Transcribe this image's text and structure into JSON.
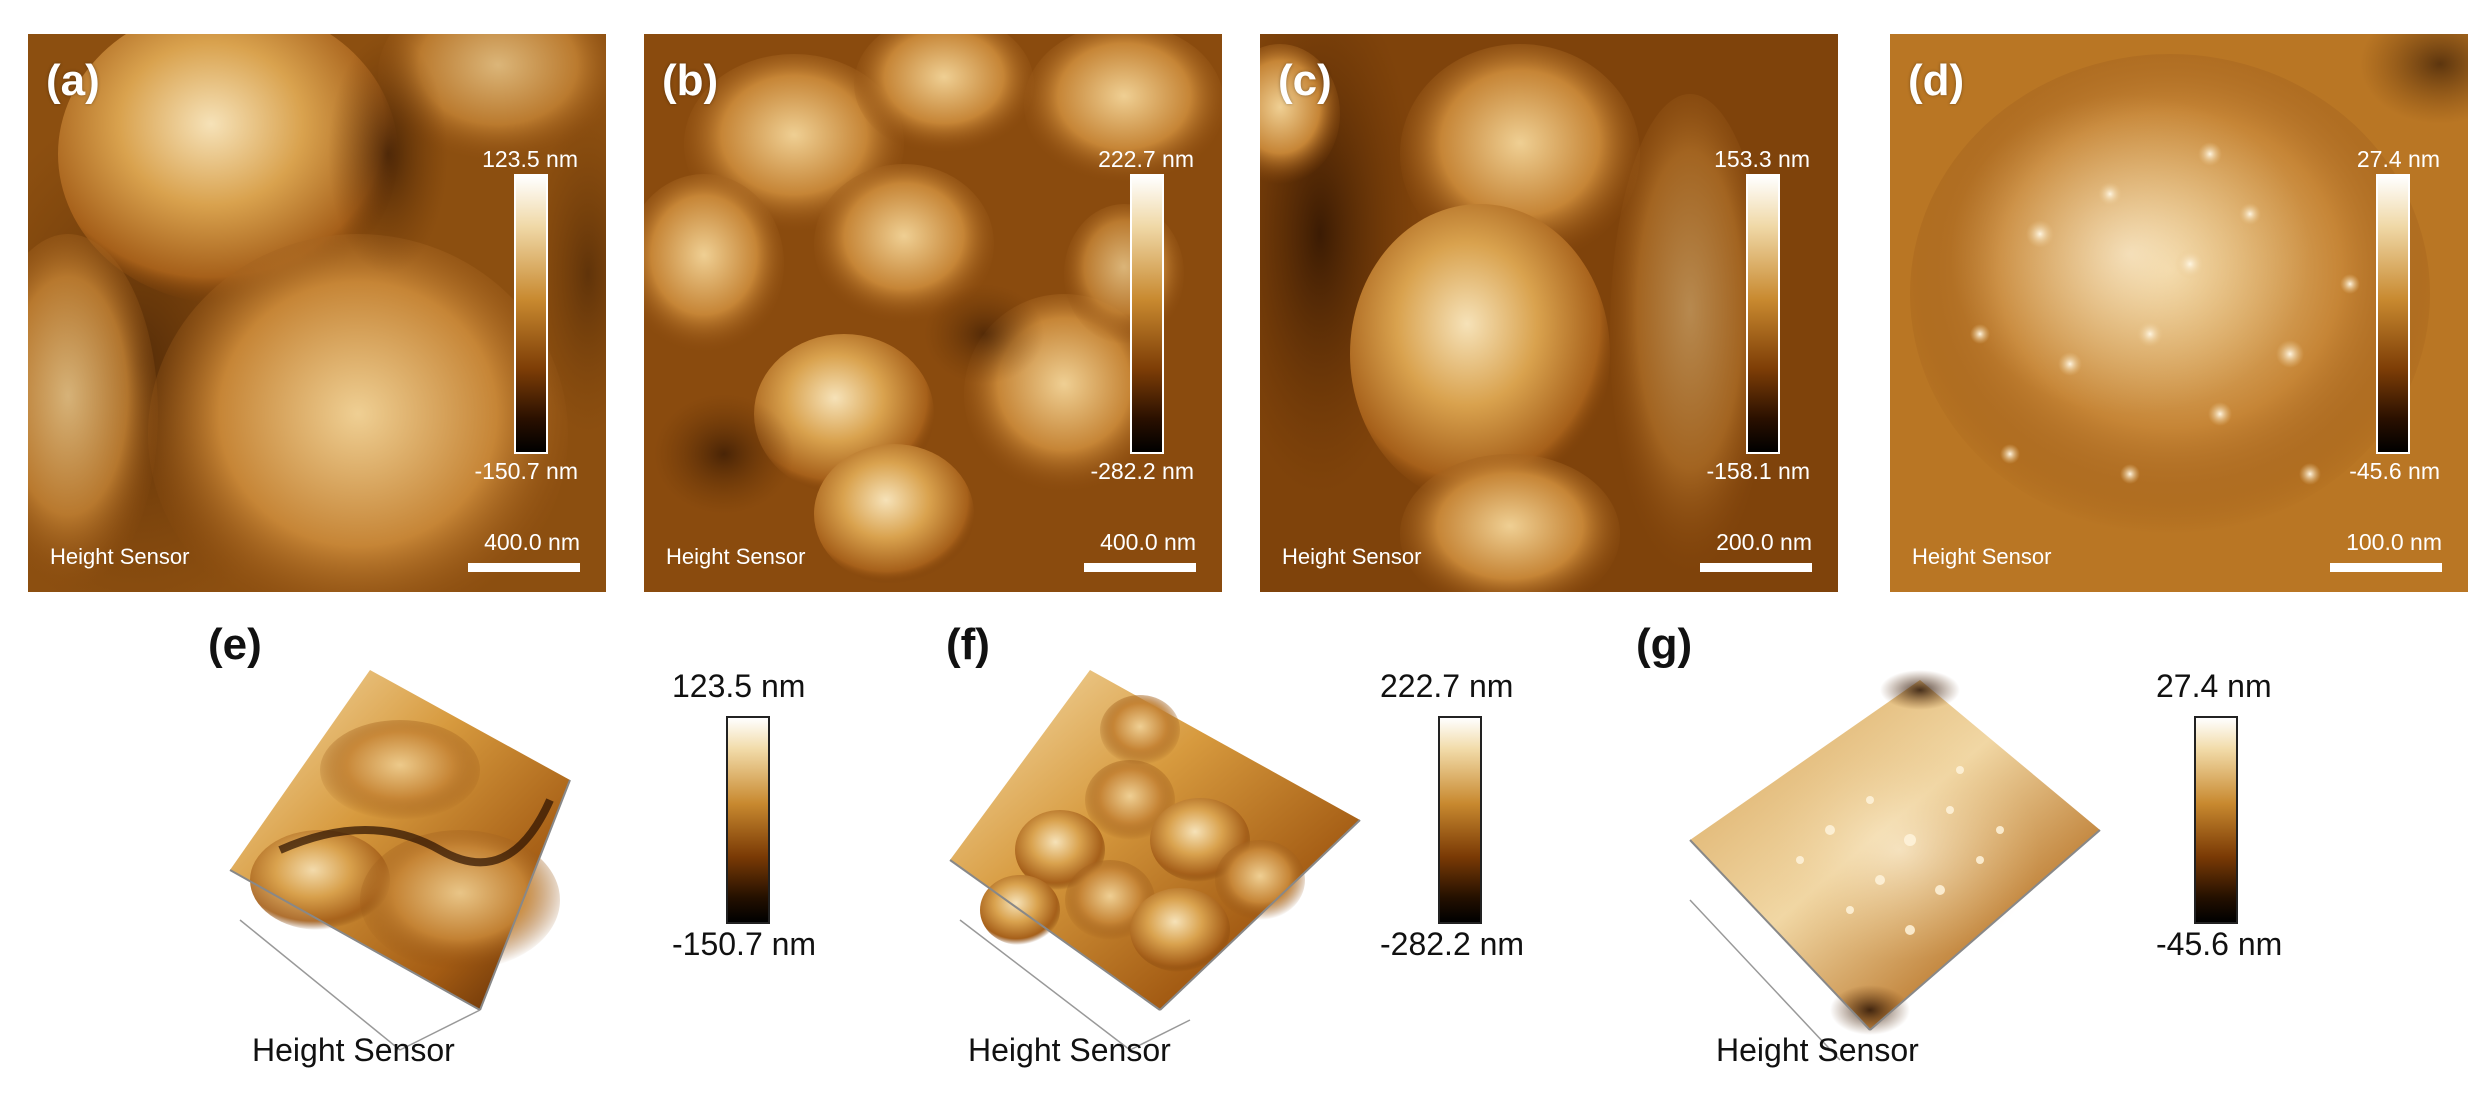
{
  "panels_2d": [
    {
      "label": "(a)",
      "sensor": "Height Sensor",
      "scale": "400.0 nm",
      "max": "123.5 nm",
      "min": "-150.7 nm"
    },
    {
      "label": "(b)",
      "sensor": "Height Sensor",
      "scale": "400.0 nm",
      "max": "222.7 nm",
      "min": "-282.2 nm"
    },
    {
      "label": "(c)",
      "sensor": "Height Sensor",
      "scale": "200.0 nm",
      "max": "153.3 nm",
      "min": "-158.1 nm"
    },
    {
      "label": "(d)",
      "sensor": "Height Sensor",
      "scale": "100.0 nm",
      "max": "27.4 nm",
      "min": "-45.6 nm"
    }
  ],
  "panels_3d": [
    {
      "label": "(e)",
      "sensor": "Height Sensor",
      "max": "123.5 nm",
      "min": "-150.7 nm"
    },
    {
      "label": "(f)",
      "sensor": "Height Sensor",
      "max": "222.7 nm",
      "min": "-282.2 nm"
    },
    {
      "label": "(g)",
      "sensor": "Height Sensor",
      "max": "27.4 nm",
      "min": "-45.6 nm"
    }
  ],
  "colors": {
    "afm_dark": "#2a1000",
    "afm_mid": "#b8741f",
    "afm_light": "#f7e6c4"
  }
}
